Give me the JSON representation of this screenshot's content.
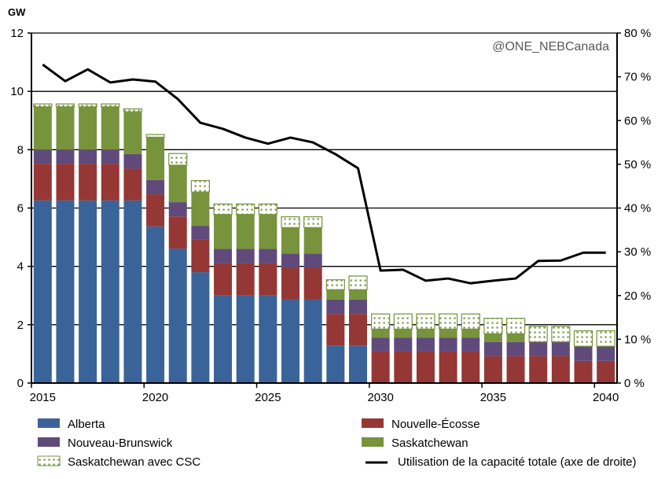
{
  "chart_data": {
    "type": "bar",
    "stacked": true,
    "y_unit_label": "GW",
    "watermark": "@ONE_NEBCanada",
    "categories": [
      2015,
      2016,
      2017,
      2018,
      2019,
      2020,
      2021,
      2022,
      2023,
      2024,
      2025,
      2026,
      2027,
      2028,
      2029,
      2030,
      2031,
      2032,
      2033,
      2034,
      2035,
      2036,
      2037,
      2038,
      2039,
      2040
    ],
    "x_tick_labels": [
      "2015",
      "2020",
      "2025",
      "2030",
      "2035",
      "2040"
    ],
    "ylim": [
      0,
      12
    ],
    "y_ticks": [
      "0",
      "2",
      "4",
      "6",
      "8",
      "10",
      "12"
    ],
    "y2lim": [
      0,
      80
    ],
    "y2_ticks": [
      "0 %",
      "10 %",
      "20 %",
      "30 %",
      "40 %",
      "50 %",
      "60 %",
      "70 %",
      "80 %"
    ],
    "grid": "horizontal",
    "legend_placement": "bottom",
    "series": [
      {
        "name": "Alberta",
        "color": "#3a6499",
        "pattern": "solid",
        "values": [
          6.26,
          6.26,
          6.26,
          6.26,
          6.26,
          5.37,
          4.61,
          3.8,
          3.01,
          3.01,
          3.01,
          2.86,
          2.86,
          1.29,
          1.29,
          0,
          0,
          0,
          0,
          0,
          0,
          0,
          0,
          0,
          0,
          0
        ]
      },
      {
        "name": "Nouvelle-Écosse",
        "color": "#953735",
        "pattern": "solid",
        "values": [
          1.26,
          1.26,
          1.26,
          1.26,
          1.09,
          1.1,
          1.1,
          1.11,
          1.1,
          1.1,
          1.1,
          1.09,
          1.09,
          1.08,
          1.08,
          1.08,
          1.08,
          1.08,
          1.08,
          1.08,
          0.92,
          0.92,
          0.92,
          0.92,
          0.76,
          0.76
        ]
      },
      {
        "name": "Nouveau-Brunswick",
        "color": "#604a7b",
        "pattern": "solid",
        "values": [
          0.48,
          0.48,
          0.48,
          0.48,
          0.5,
          0.49,
          0.49,
          0.48,
          0.49,
          0.49,
          0.49,
          0.49,
          0.49,
          0.49,
          0.49,
          0.48,
          0.48,
          0.48,
          0.48,
          0.48,
          0.49,
          0.49,
          0.49,
          0.49,
          0.5,
          0.5
        ]
      },
      {
        "name": "Saskatchewan",
        "color": "#77933c",
        "pattern": "solid",
        "values": [
          1.47,
          1.47,
          1.47,
          1.47,
          1.45,
          1.47,
          1.27,
          1.16,
          1.18,
          1.18,
          1.18,
          0.89,
          0.89,
          0.34,
          0.34,
          0.29,
          0.29,
          0.29,
          0.29,
          0.29,
          0.28,
          0.28,
          0,
          0,
          0,
          0
        ]
      },
      {
        "name": "Saskatchewan avec CSC",
        "color": "#77933c",
        "pattern": "dotted",
        "values": [
          0.1,
          0.1,
          0.1,
          0.1,
          0.1,
          0.09,
          0.4,
          0.39,
          0.36,
          0.36,
          0.36,
          0.37,
          0.37,
          0.34,
          0.47,
          0.52,
          0.52,
          0.52,
          0.52,
          0.52,
          0.53,
          0.53,
          0.53,
          0.53,
          0.53,
          0.53
        ]
      }
    ],
    "line_series": {
      "name": "Utilisation de la capacité totale (axe de droite)",
      "color": "#000000",
      "axis": "right",
      "unit": "%",
      "values": [
        72.8,
        69.0,
        71.7,
        68.7,
        69.4,
        68.9,
        64.9,
        59.5,
        58.1,
        56.1,
        54.7,
        56.1,
        55.0,
        52.3,
        49.1,
        25.7,
        25.9,
        23.4,
        23.9,
        22.8,
        23.4,
        23.9,
        27.9,
        28.0,
        29.8,
        29.8
      ]
    }
  }
}
